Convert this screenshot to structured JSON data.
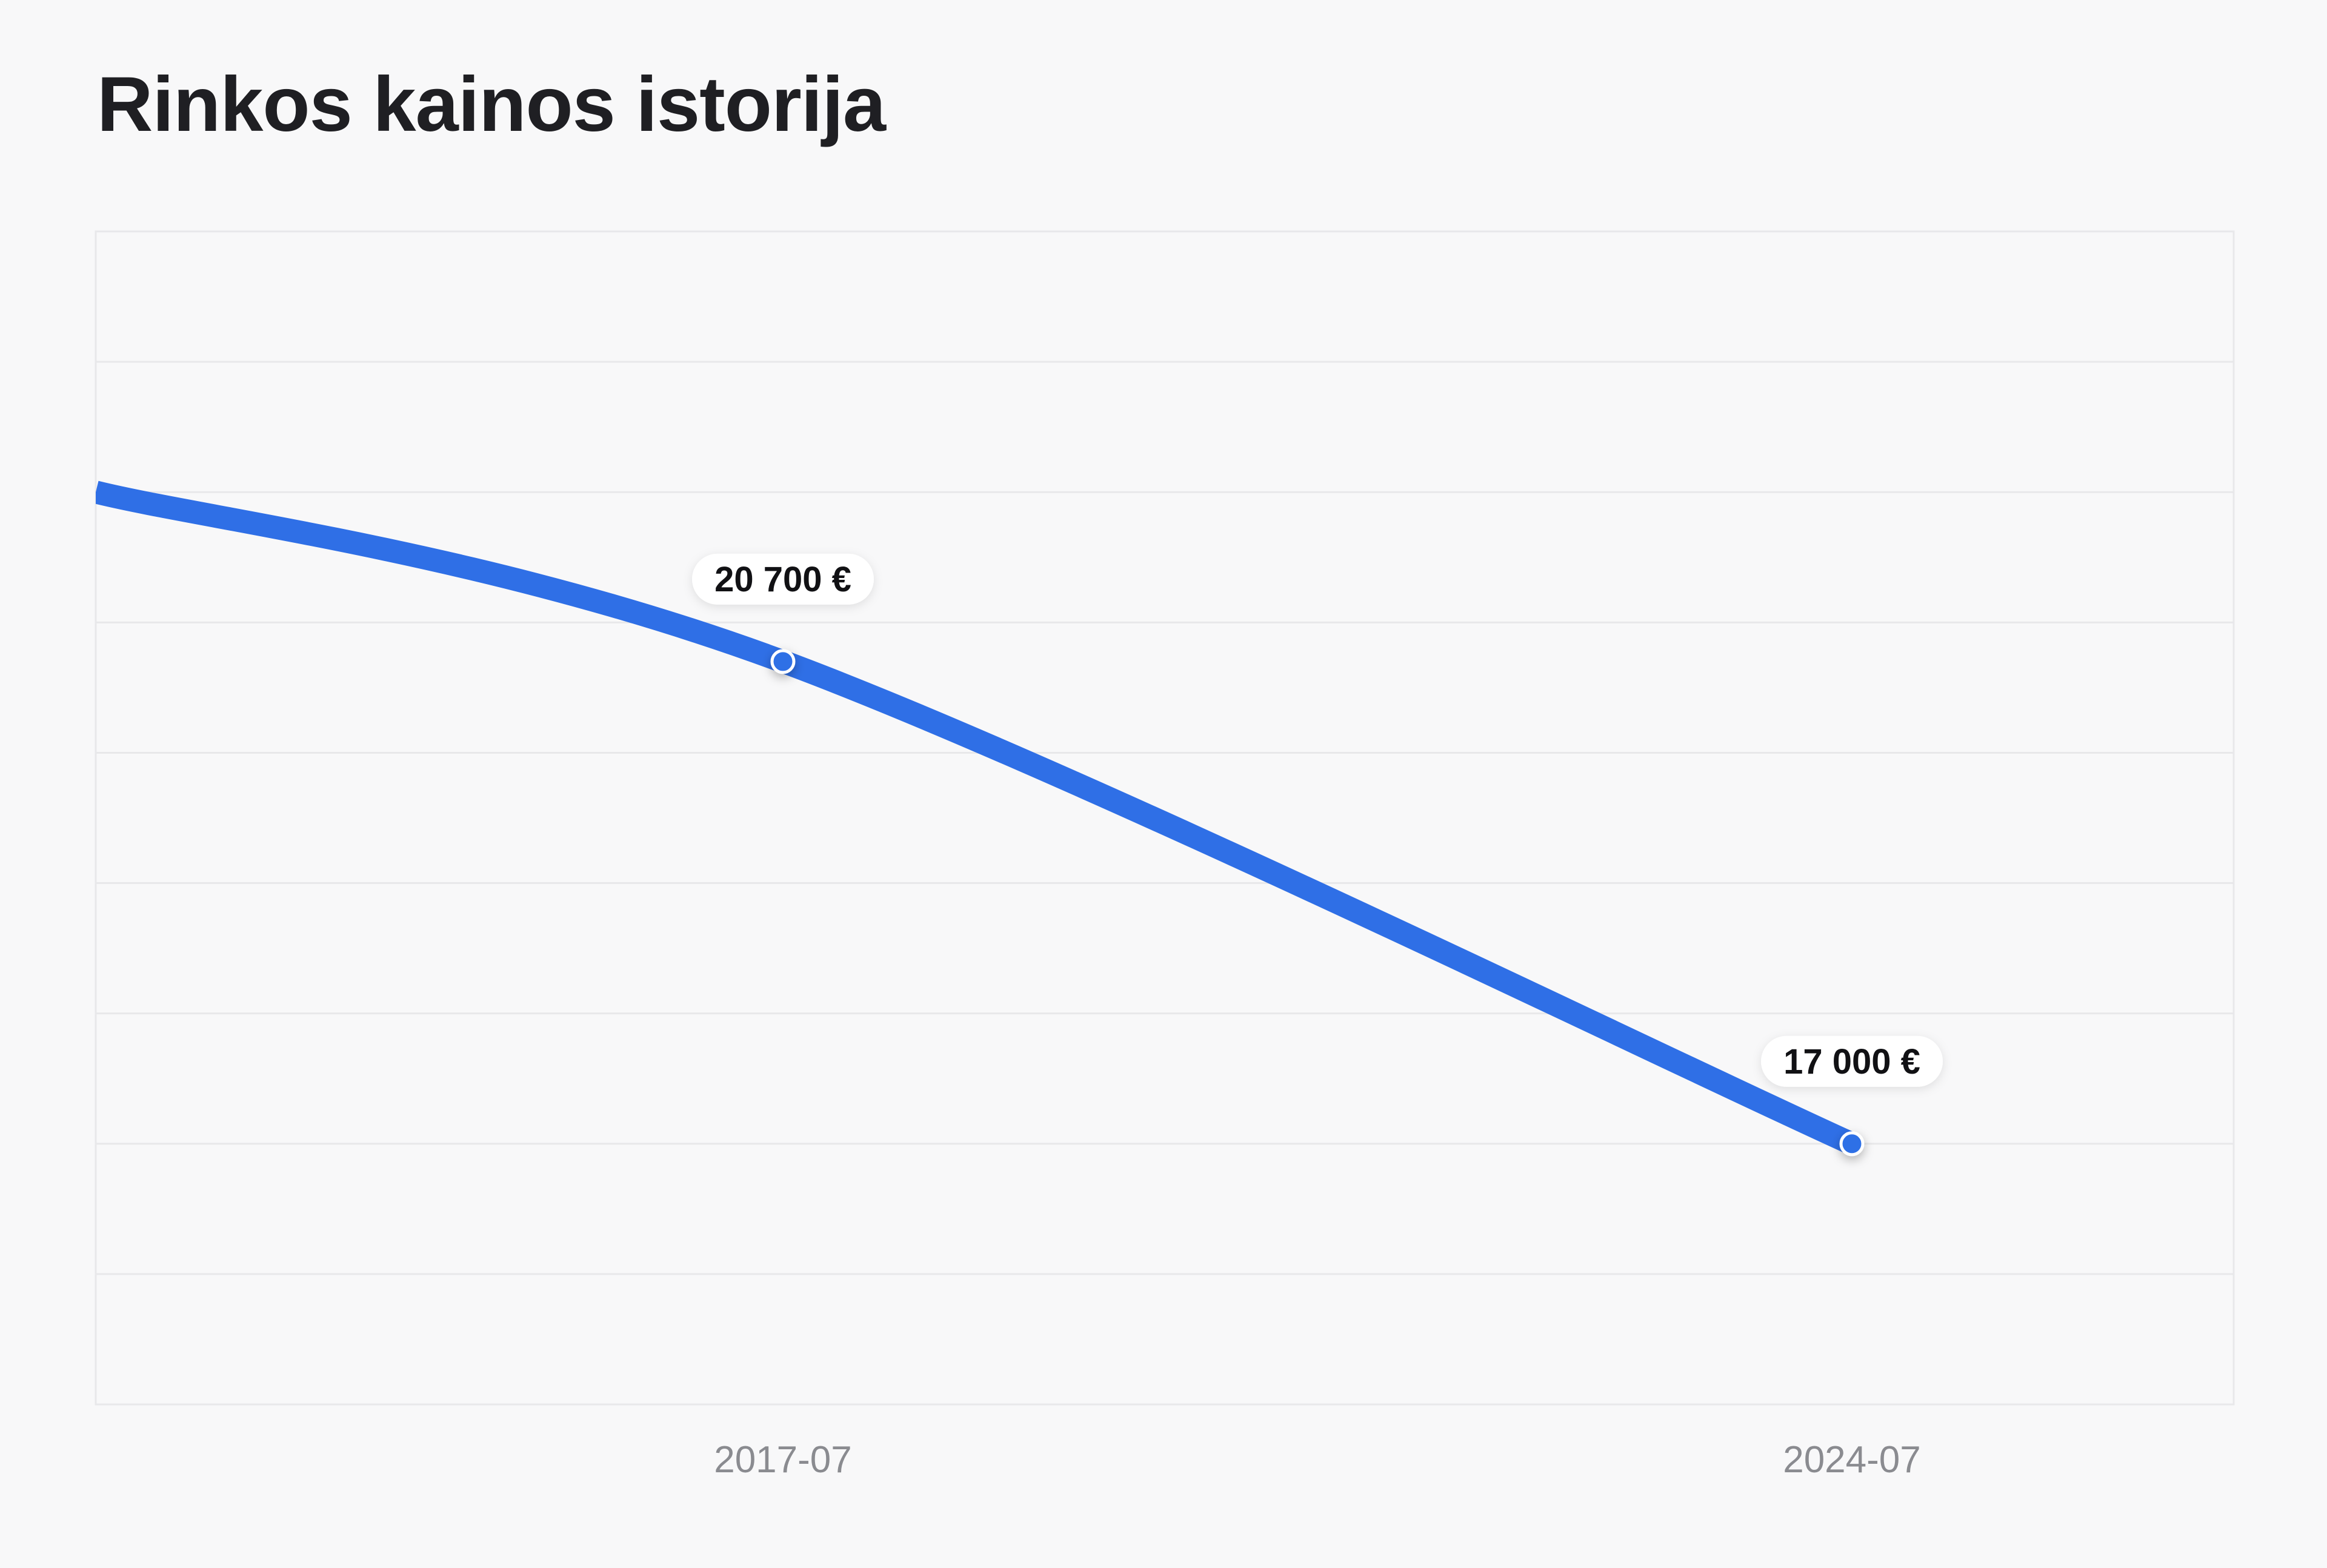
{
  "page": {
    "title": "Rinkos kainos istorija"
  },
  "chart_data": {
    "type": "line",
    "title": "Rinkos kainos istorija",
    "xlabel": "",
    "ylabel": "",
    "x": [
      "2013-01",
      "2017-07",
      "2024-07"
    ],
    "tick_labels": [
      "2017-07",
      "2024-07"
    ],
    "series": [
      {
        "values": [
          22000,
          20700,
          17000
        ],
        "labeled_points": [
          {
            "x": "2017-07",
            "value": 20700,
            "label": "20 700 €"
          },
          {
            "x": "2024-07",
            "value": 17000,
            "label": "17 000 €"
          }
        ]
      }
    ],
    "xlim": [
      "2013-01",
      "2027-01"
    ],
    "ylim": [
      15000,
      24000
    ],
    "grid": true,
    "legend": "none",
    "colors": {
      "line": "#2f6fe6",
      "grid": "#e8e8ea",
      "frame": "#e8e8ea",
      "label_bg": "#ffffff"
    }
  }
}
